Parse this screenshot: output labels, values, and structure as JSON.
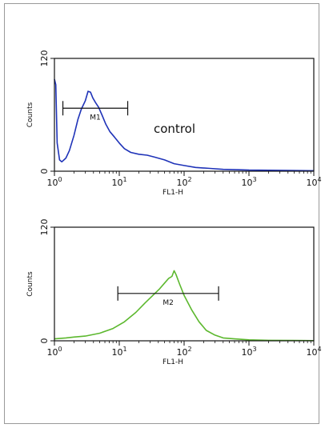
{
  "chart_data": [
    {
      "type": "line",
      "xlabel": "FL1-H",
      "ylabel": "Counts",
      "x_scale": "log",
      "xlim": [
        1,
        10000
      ],
      "ylim": [
        0,
        120
      ],
      "x_ticks": [
        {
          "base": "10",
          "exp": "0"
        },
        {
          "base": "10",
          "exp": "1"
        },
        {
          "base": "10",
          "exp": "2"
        },
        {
          "base": "10",
          "exp": "3"
        },
        {
          "base": "10",
          "exp": "4"
        }
      ],
      "y_ticks": [
        "0",
        "120"
      ],
      "color": "#1f33b8",
      "marker": {
        "label": "M1",
        "x_start": 1.35,
        "x_end": 13.5,
        "y": 67
      },
      "annotation": "control",
      "series": [
        {
          "x": [
            1.0,
            1.05,
            1.1,
            1.2,
            1.3,
            1.5,
            1.7,
            2.0,
            2.3,
            2.6,
            3.0,
            3.3,
            3.6,
            3.9,
            4.3,
            4.8,
            5.4,
            6.2,
            7.2,
            8.5,
            10,
            12,
            15,
            20,
            27,
            35,
            50,
            70,
            100,
            150,
            250,
            400,
            700,
            1000,
            2000,
            4000,
            10000
          ],
          "y": [
            98,
            92,
            30,
            12,
            10,
            14,
            22,
            38,
            55,
            66,
            75,
            85,
            84,
            78,
            73,
            68,
            60,
            50,
            42,
            36,
            30,
            24,
            20,
            18,
            17,
            15,
            12,
            8,
            6,
            4,
            3,
            2,
            1.5,
            1.2,
            1,
            0.8,
            0.5
          ]
        }
      ]
    },
    {
      "type": "line",
      "xlabel": "FL1-H",
      "ylabel": "Counts",
      "x_scale": "log",
      "xlim": [
        1,
        10000
      ],
      "ylim": [
        0,
        120
      ],
      "x_ticks": [
        {
          "base": "10",
          "exp": "0"
        },
        {
          "base": "10",
          "exp": "1"
        },
        {
          "base": "10",
          "exp": "2"
        },
        {
          "base": "10",
          "exp": "3"
        },
        {
          "base": "10",
          "exp": "4"
        }
      ],
      "y_ticks": [
        "0",
        "120"
      ],
      "color": "#5cb82e",
      "marker": {
        "label": "M2",
        "x_start": 9.5,
        "x_end": 340,
        "y": 50
      },
      "series": [
        {
          "x": [
            1.0,
            1.5,
            2.0,
            3.0,
            5.0,
            8.0,
            12,
            18,
            25,
            33,
            42,
            50,
            58,
            65,
            70,
            75,
            85,
            100,
            130,
            170,
            220,
            300,
            400,
            600,
            1000,
            2000,
            5000,
            10000
          ],
          "y": [
            2,
            3,
            4,
            5,
            8,
            13,
            20,
            30,
            40,
            48,
            55,
            61,
            66,
            68,
            74,
            70,
            60,
            48,
            33,
            20,
            11,
            6,
            3,
            2,
            1,
            0.5,
            0.3,
            0.2
          ]
        }
      ]
    }
  ]
}
